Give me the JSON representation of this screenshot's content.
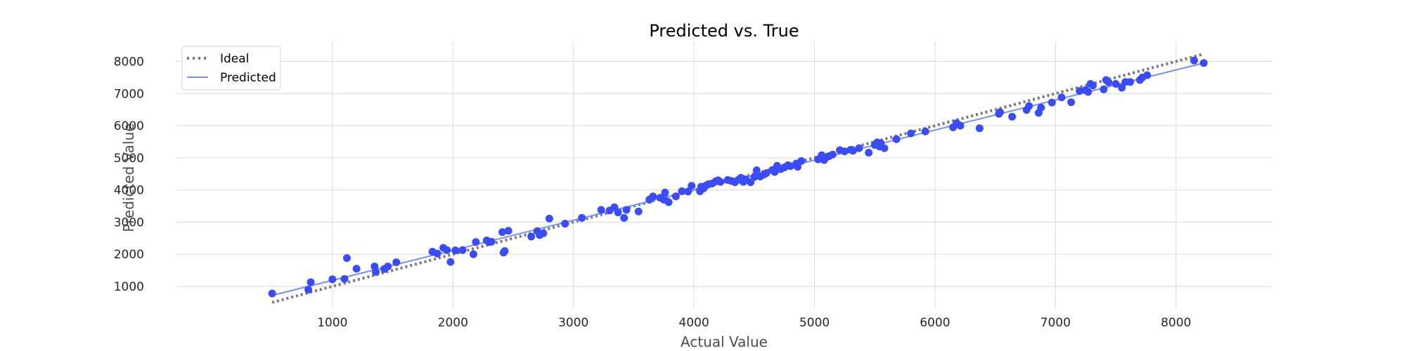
{
  "chart_data": {
    "type": "scatter",
    "title": "Predicted vs. True",
    "xlabel": "Actual Value",
    "ylabel": "Predicted Value",
    "xlim": [
      -300,
      8800
    ],
    "ylim": [
      300,
      8600
    ],
    "xticks": [
      1000,
      2000,
      3000,
      4000,
      5000,
      6000,
      7000,
      8000
    ],
    "yticks": [
      1000,
      2000,
      3000,
      4000,
      5000,
      6000,
      7000,
      8000
    ],
    "grid": true,
    "legend_position": "top-left",
    "colors": {
      "points": "#3b4cf4",
      "predicted_line": "#7b8cf2",
      "ideal_line": "#777777",
      "grid": "#d9d9d9"
    },
    "series": [
      {
        "name": "Ideal",
        "type": "line",
        "style": "dotted",
        "x": [
          500,
          8230
        ],
        "y": [
          500,
          8230
        ]
      },
      {
        "name": "Predicted",
        "type": "line",
        "style": "solid",
        "x": [
          500,
          8230
        ],
        "y": [
          720,
          7950
        ]
      },
      {
        "type": "scatter",
        "points": [
          [
            500,
            780
          ],
          [
            800,
            900
          ],
          [
            820,
            1130
          ],
          [
            1000,
            1220
          ],
          [
            1100,
            1230
          ],
          [
            1120,
            1880
          ],
          [
            1200,
            1550
          ],
          [
            1350,
            1620
          ],
          [
            1360,
            1450
          ],
          [
            1430,
            1540
          ],
          [
            1460,
            1620
          ],
          [
            1530,
            1750
          ],
          [
            1830,
            2080
          ],
          [
            1870,
            2020
          ],
          [
            1920,
            2200
          ],
          [
            1950,
            2130
          ],
          [
            1980,
            1760
          ],
          [
            2020,
            2120
          ],
          [
            2080,
            2130
          ],
          [
            2170,
            2000
          ],
          [
            2190,
            2380
          ],
          [
            2280,
            2430
          ],
          [
            2300,
            2380
          ],
          [
            2320,
            2390
          ],
          [
            2410,
            2690
          ],
          [
            2420,
            2050
          ],
          [
            2430,
            2100
          ],
          [
            2460,
            2730
          ],
          [
            2650,
            2550
          ],
          [
            2700,
            2720
          ],
          [
            2720,
            2600
          ],
          [
            2750,
            2650
          ],
          [
            2800,
            3110
          ],
          [
            2930,
            2950
          ],
          [
            3070,
            3130
          ],
          [
            3230,
            3380
          ],
          [
            3300,
            3360
          ],
          [
            3340,
            3460
          ],
          [
            3370,
            3300
          ],
          [
            3420,
            3130
          ],
          [
            3440,
            3380
          ],
          [
            3540,
            3330
          ],
          [
            3630,
            3700
          ],
          [
            3660,
            3800
          ],
          [
            3720,
            3760
          ],
          [
            3750,
            3700
          ],
          [
            3760,
            3920
          ],
          [
            3790,
            3620
          ],
          [
            3850,
            3800
          ],
          [
            3900,
            3960
          ],
          [
            3950,
            3950
          ],
          [
            3980,
            4130
          ],
          [
            4050,
            3960
          ],
          [
            4060,
            4100
          ],
          [
            4080,
            4050
          ],
          [
            4100,
            4140
          ],
          [
            4120,
            4180
          ],
          [
            4150,
            4200
          ],
          [
            4180,
            4270
          ],
          [
            4200,
            4300
          ],
          [
            4220,
            4250
          ],
          [
            4280,
            4310
          ],
          [
            4310,
            4280
          ],
          [
            4340,
            4240
          ],
          [
            4370,
            4320
          ],
          [
            4390,
            4380
          ],
          [
            4410,
            4250
          ],
          [
            4430,
            4330
          ],
          [
            4470,
            4240
          ],
          [
            4500,
            4400
          ],
          [
            4520,
            4610
          ],
          [
            4550,
            4420
          ],
          [
            4580,
            4480
          ],
          [
            4600,
            4520
          ],
          [
            4650,
            4620
          ],
          [
            4670,
            4560
          ],
          [
            4690,
            4750
          ],
          [
            4720,
            4650
          ],
          [
            4750,
            4700
          ],
          [
            4780,
            4770
          ],
          [
            4800,
            4740
          ],
          [
            4850,
            4820
          ],
          [
            4860,
            4720
          ],
          [
            4890,
            4900
          ],
          [
            5030,
            4950
          ],
          [
            5060,
            5080
          ],
          [
            5080,
            4930
          ],
          [
            5100,
            5020
          ],
          [
            5120,
            5050
          ],
          [
            5150,
            5100
          ],
          [
            5210,
            5240
          ],
          [
            5250,
            5200
          ],
          [
            5300,
            5250
          ],
          [
            5320,
            5220
          ],
          [
            5370,
            5300
          ],
          [
            5450,
            5160
          ],
          [
            5500,
            5400
          ],
          [
            5520,
            5480
          ],
          [
            5540,
            5350
          ],
          [
            5550,
            5460
          ],
          [
            5580,
            5300
          ],
          [
            5680,
            5580
          ],
          [
            5800,
            5760
          ],
          [
            5920,
            5820
          ],
          [
            6150,
            5950
          ],
          [
            6180,
            6080
          ],
          [
            6210,
            6000
          ],
          [
            6370,
            5920
          ],
          [
            6530,
            6370
          ],
          [
            6540,
            6420
          ],
          [
            6640,
            6280
          ],
          [
            6760,
            6490
          ],
          [
            6780,
            6610
          ],
          [
            6860,
            6400
          ],
          [
            6880,
            6560
          ],
          [
            6970,
            6720
          ],
          [
            7050,
            6880
          ],
          [
            7130,
            6730
          ],
          [
            7200,
            7080
          ],
          [
            7250,
            7110
          ],
          [
            7270,
            7050
          ],
          [
            7290,
            7300
          ],
          [
            7310,
            7250
          ],
          [
            7400,
            7130
          ],
          [
            7420,
            7420
          ],
          [
            7440,
            7350
          ],
          [
            7500,
            7300
          ],
          [
            7550,
            7180
          ],
          [
            7580,
            7360
          ],
          [
            7620,
            7360
          ],
          [
            7700,
            7420
          ],
          [
            7720,
            7500
          ],
          [
            7760,
            7570
          ],
          [
            8150,
            8030
          ],
          [
            8230,
            7950
          ]
        ]
      }
    ]
  }
}
